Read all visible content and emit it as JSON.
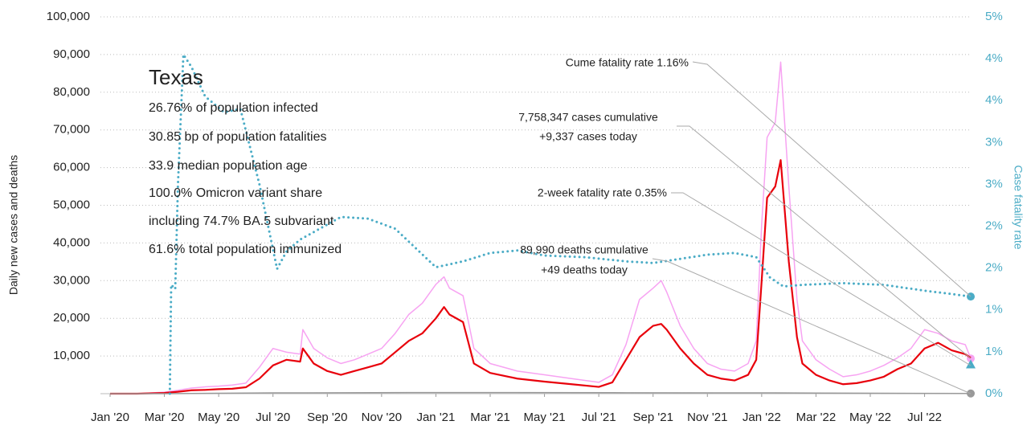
{
  "chart_data": {
    "type": "line",
    "y_axis_label": "Daily new cases and deaths",
    "y2_axis_label": "Case fatality rate",
    "xlim": [
      0,
      31.7
    ],
    "xticks": [
      {
        "value": 0,
        "label": "Jan '20"
      },
      {
        "value": 2,
        "label": "Mar '20"
      },
      {
        "value": 4,
        "label": "May '20"
      },
      {
        "value": 6,
        "label": "Jul '20"
      },
      {
        "value": 8,
        "label": "Sep '20"
      },
      {
        "value": 10,
        "label": "Nov '20"
      },
      {
        "value": 12,
        "label": "Jan '21"
      },
      {
        "value": 14,
        "label": "Mar '21"
      },
      {
        "value": 16,
        "label": "May '21"
      },
      {
        "value": 18,
        "label": "Jul '21"
      },
      {
        "value": 20,
        "label": "Sep '21"
      },
      {
        "value": 22,
        "label": "Nov '21"
      },
      {
        "value": 24,
        "label": "Jan '22"
      },
      {
        "value": 26,
        "label": "Mar '22"
      },
      {
        "value": 28,
        "label": "May '22"
      },
      {
        "value": 30,
        "label": "Jul '22"
      }
    ],
    "ylim": [
      0,
      100000
    ],
    "yticks": [
      {
        "value": 10000,
        "label": "10,000"
      },
      {
        "value": 20000,
        "label": "20,000"
      },
      {
        "value": 30000,
        "label": "30,000"
      },
      {
        "value": 40000,
        "label": "40,000"
      },
      {
        "value": 50000,
        "label": "50,000"
      },
      {
        "value": 60000,
        "label": "60,000"
      },
      {
        "value": 70000,
        "label": "70,000"
      },
      {
        "value": 80000,
        "label": "80,000"
      },
      {
        "value": 90000,
        "label": "90,000"
      },
      {
        "value": 100000,
        "label": "100,000"
      }
    ],
    "y2lim": [
      0,
      4.5
    ],
    "y2ticks": [
      {
        "value": 0,
        "label": "0%"
      },
      {
        "value": 0.5,
        "label": "1%"
      },
      {
        "value": 1,
        "label": "1%"
      },
      {
        "value": 1.5,
        "label": "2%"
      },
      {
        "value": 2,
        "label": "2%"
      },
      {
        "value": 2.5,
        "label": "3%"
      },
      {
        "value": 3,
        "label": "3%"
      },
      {
        "value": 3.5,
        "label": "4%"
      },
      {
        "value": 4,
        "label": "4%"
      },
      {
        "value": 4.5,
        "label": "5%"
      }
    ],
    "grid": true,
    "series": [
      {
        "color": "#f7a3f2",
        "width": 1.5,
        "end_marker": "circle",
        "x": [
          0,
          1,
          2,
          2.5,
          3,
          3.5,
          4,
          4.5,
          5,
          5.5,
          6,
          6.5,
          7,
          7.1,
          7.5,
          8,
          8.5,
          9,
          9.5,
          10,
          10.5,
          11,
          11.5,
          12,
          12.3,
          12.5,
          13,
          13.4,
          14,
          15,
          16,
          17,
          18,
          18.5,
          19,
          19.5,
          20,
          20.3,
          20.5,
          21,
          21.5,
          22,
          22.5,
          23,
          23.5,
          23.8,
          24,
          24.2,
          24.5,
          24.7,
          25,
          25.3,
          25.5,
          26,
          26.5,
          27,
          27.5,
          28,
          28.5,
          29,
          29.5,
          30,
          30.5,
          31,
          31.5,
          31.7
        ],
        "values": [
          0,
          0,
          400,
          900,
          1500,
          1800,
          2000,
          2300,
          2800,
          7000,
          12000,
          11000,
          10500,
          17000,
          12000,
          9500,
          8000,
          9000,
          10500,
          12000,
          16000,
          21000,
          24000,
          29000,
          31000,
          28000,
          26000,
          12000,
          8000,
          6000,
          5000,
          4000,
          3000,
          5000,
          13000,
          25000,
          28000,
          30000,
          27000,
          18000,
          12000,
          8000,
          6500,
          6000,
          8000,
          14000,
          45000,
          68000,
          72000,
          88000,
          55000,
          25000,
          14000,
          9000,
          6500,
          4500,
          5000,
          6000,
          7500,
          9500,
          12000,
          17000,
          16000,
          14000,
          13000,
          9337
        ]
      },
      {
        "color": "#e8000b",
        "width": 2.2,
        "x": [
          0,
          1,
          2,
          2.5,
          3,
          3.5,
          4,
          4.5,
          5,
          5.5,
          6,
          6.5,
          7,
          7.1,
          7.5,
          8,
          8.5,
          9,
          9.5,
          10,
          10.5,
          11,
          11.5,
          12,
          12.3,
          12.5,
          13,
          13.4,
          14,
          15,
          16,
          17,
          18,
          18.5,
          19,
          19.5,
          20,
          20.3,
          20.5,
          21,
          21.5,
          22,
          22.5,
          23,
          23.5,
          23.8,
          24,
          24.2,
          24.5,
          24.7,
          25,
          25.3,
          25.5,
          26,
          26.5,
          27,
          27.5,
          28,
          28.5,
          29,
          29.5,
          30,
          30.5,
          31,
          31.5,
          31.7
        ],
        "values": [
          0,
          0,
          200,
          500,
          900,
          1000,
          1200,
          1300,
          1700,
          4000,
          7500,
          9000,
          8500,
          12000,
          8000,
          6000,
          5000,
          6000,
          7000,
          8000,
          11000,
          14000,
          16000,
          20000,
          23000,
          21000,
          19000,
          8000,
          5500,
          4000,
          3200,
          2500,
          1800,
          3000,
          9000,
          15000,
          18000,
          18500,
          17000,
          12000,
          8000,
          5000,
          4000,
          3500,
          5000,
          9000,
          30000,
          52000,
          55000,
          62000,
          35000,
          15000,
          8000,
          5000,
          3500,
          2500,
          2800,
          3500,
          4500,
          6500,
          8000,
          12000,
          13500,
          11500,
          10500,
          9500
        ]
      },
      {
        "color": "#999999",
        "width": 1.5,
        "end_marker": "circle",
        "x": [
          0,
          2,
          6,
          12,
          19,
          24.5,
          31.7
        ],
        "values": [
          0,
          10,
          200,
          300,
          250,
          200,
          49
        ]
      },
      {
        "color": "#4bacc6",
        "width": 3,
        "dotted": true,
        "axis": "y2",
        "end_marker": "circle",
        "x": [
          2.2,
          2.25,
          2.4,
          2.5,
          2.7,
          3,
          3.5,
          4.2,
          4.8,
          5.5,
          6.15,
          6.5,
          7,
          8.5,
          9.5,
          10.5,
          12,
          13,
          14,
          15,
          16,
          17.5,
          19,
          20,
          21,
          22,
          23,
          23.8,
          24.3,
          24.8,
          25.5,
          27,
          28.5,
          30,
          31,
          31.7
        ],
        "values": [
          0,
          1.3,
          1.25,
          2.5,
          4.05,
          3.9,
          3.55,
          3.36,
          3.4,
          2.5,
          1.49,
          1.7,
          1.84,
          2.11,
          2.09,
          1.97,
          1.51,
          1.58,
          1.68,
          1.71,
          1.65,
          1.63,
          1.58,
          1.56,
          1.61,
          1.66,
          1.68,
          1.63,
          1.39,
          1.28,
          1.3,
          1.32,
          1.3,
          1.23,
          1.19,
          1.16
        ]
      },
      {
        "color": "#4bacc6",
        "axis": "y2",
        "end_marker": "triangle",
        "x": [
          31.7
        ],
        "values": [
          0.35
        ]
      }
    ],
    "info": {
      "title": "Texas",
      "lines": [
        "26.76% of population infected",
        "30.85 bp of population fatalities",
        "33.9 median population age",
        "100.0% Omicron variant share",
        "including 74.7% BA.5 subvariant",
        "61.6% total population immunized"
      ]
    },
    "annotations": {
      "cume_fatality": "Cume fatality rate 1.16%",
      "cases_cumulative": "7,758,347 cases cumulative",
      "cases_today": "+9,337 cases today",
      "two_week_fatality": "2-week fatality rate 0.35%",
      "deaths_cumulative": "89,990 deaths cumulative",
      "deaths_today": "+49 deaths today"
    }
  }
}
